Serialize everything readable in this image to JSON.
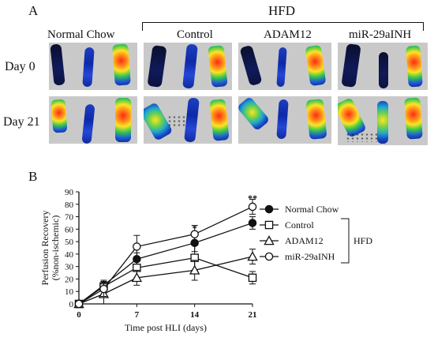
{
  "panel_a": {
    "letter": "A",
    "group_label": "HFD",
    "columns": [
      "Normal Chow",
      "Control",
      "ADAM12",
      "miR-29aINH"
    ],
    "rows": [
      "Day 0",
      "Day 21"
    ]
  },
  "panel_b": {
    "letter": "B",
    "group_bracket_label": "HFD"
  },
  "chart_data": {
    "type": "line",
    "xlabel": "Time post HLI (days)",
    "ylabel": "Perfusion Recovery (%non-ischemic)",
    "ylabel_lines": [
      "Perfusion Recovery",
      "(%non-ischemic)"
    ],
    "xlim": [
      0,
      21
    ],
    "ylim": [
      0,
      90
    ],
    "xticks": [
      0,
      7,
      14,
      21
    ],
    "yticks": [
      0,
      10,
      20,
      30,
      40,
      50,
      60,
      70,
      80,
      90
    ],
    "series": [
      {
        "name": "Normal Chow",
        "marker": "filled-circle",
        "x": [
          0,
          3,
          7,
          14,
          21
        ],
        "y": [
          0,
          15,
          36,
          49,
          65
        ],
        "err": [
          1,
          4,
          5,
          7,
          5
        ]
      },
      {
        "name": "Control",
        "marker": "open-square",
        "x": [
          0,
          3,
          7,
          14,
          21
        ],
        "y": [
          0,
          14,
          29,
          37,
          21
        ],
        "err": [
          1,
          4,
          8,
          10,
          5
        ]
      },
      {
        "name": "ADAM12",
        "marker": "open-triangle",
        "x": [
          0,
          3,
          7,
          14,
          21
        ],
        "y": [
          0,
          8,
          21,
          27,
          38
        ],
        "err": [
          1,
          8,
          6,
          8,
          6
        ]
      },
      {
        "name": "miR-29aINH",
        "marker": "open-circle",
        "x": [
          0,
          3,
          7,
          14,
          21
        ],
        "y": [
          0,
          12,
          46,
          56,
          78
        ],
        "err": [
          1,
          6,
          9,
          7,
          6
        ]
      }
    ],
    "annotations": [
      {
        "x": 14,
        "y": 61,
        "text": "*"
      },
      {
        "x": 21,
        "y": 85,
        "text": "**"
      }
    ]
  }
}
